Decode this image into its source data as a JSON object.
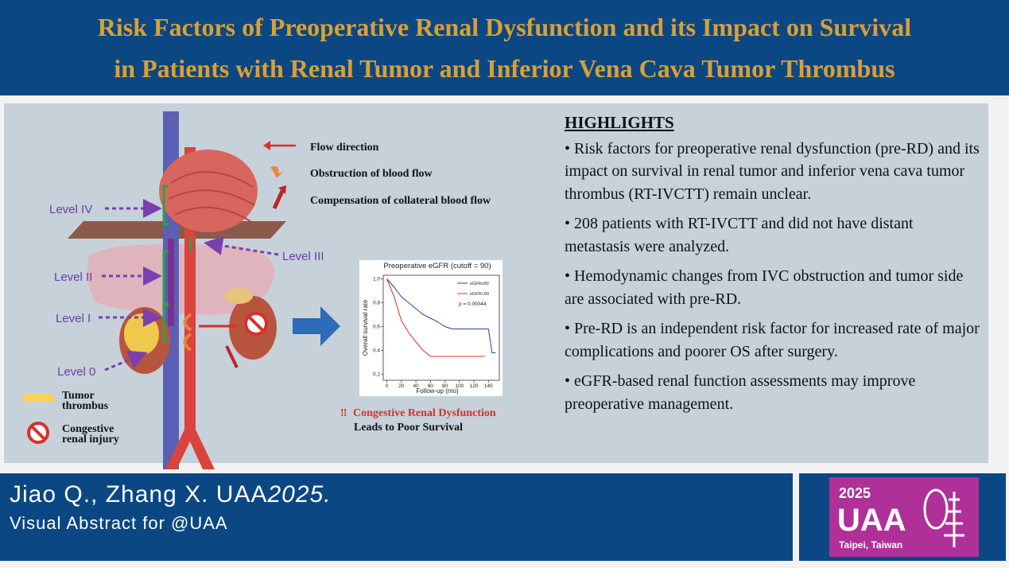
{
  "header": {
    "title": [
      "Risk Factors of Preoperative Renal Dysfunction and its Impact on Survival",
      "in Patients with Renal Tumor and Inferior Vena Cava Tumor Thrombus"
    ]
  },
  "figure": {
    "levels": [
      "Level IV",
      "Level III",
      "Level II",
      "Level I",
      "Level 0"
    ],
    "legend": {
      "flow": "Flow direction",
      "obstruction": "Obstruction of blood flow",
      "compensation": "Compensation of collateral blood flow",
      "tumor_thrombus": [
        "Tumor",
        "thrombus"
      ],
      "congestive": [
        "Congestive",
        "renal injury"
      ]
    },
    "conclusion": {
      "mark": "‼",
      "line1": "Congestive Renal Dysfunction",
      "line2": "Leads to Poor Survival"
    }
  },
  "chart_data": {
    "type": "line",
    "title": "Preoperative eGFR (cutoff = 90)",
    "x_label": "Follow-up (mo)",
    "y_label": "Overall survival rate",
    "annotation": "p = 0.00044",
    "xlim": [
      -5,
      155
    ],
    "ylim": [
      0.15,
      1.03
    ],
    "xticks": [
      0,
      20,
      40,
      60,
      80,
      100,
      120,
      140
    ],
    "yticks": [
      0.2,
      0.4,
      0.6,
      0.8,
      {
        "value": 1,
        "label": "1.0"
      }
    ],
    "series": [
      {
        "name": "eGFR≥90",
        "color": "#2b3f9e",
        "x": [
          0,
          10,
          20,
          30,
          40,
          50,
          60,
          70,
          80,
          90,
          100,
          140,
          145,
          150
        ],
        "values": [
          1,
          0.93,
          0.85,
          0.8,
          0.75,
          0.7,
          0.67,
          0.64,
          0.6,
          0.58,
          0.58,
          0.58,
          0.38,
          0.38
        ]
      },
      {
        "name": "eGFR<90",
        "color": "#d8302a",
        "x": [
          0,
          10,
          20,
          30,
          40,
          50,
          60,
          80,
          100,
          135
        ],
        "values": [
          1,
          0.85,
          0.65,
          0.55,
          0.47,
          0.4,
          0.35,
          0.35,
          0.35,
          0.35
        ]
      }
    ]
  },
  "highlights": {
    "heading": "HIGHLIGHTS",
    "items": [
      "• Risk factors for preoperative renal dysfunction (pre-RD) and its impact on survival in renal tumor and inferior vena cava tumor thrombus (RT-IVCTT) remain unclear.",
      "• 208 patients with RT-IVCTT and did not have distant metastasis were analyzed.",
      "• Hemodynamic changes from IVC obstruction and tumor side are associated with pre-RD.",
      "• Pre-RD is an independent risk factor for increased rate of major complications and poorer OS after surgery.",
      "• eGFR-based renal function assessments may improve preoperative management."
    ]
  },
  "footer": {
    "citation": "Jiao Q., Zhang X. UAA",
    "citation_year": "2025.",
    "subtitle": "Visual Abstract for @UAA",
    "logo": {
      "year": "2025",
      "name": "UAA",
      "place": "Taipei, Taiwan"
    }
  }
}
